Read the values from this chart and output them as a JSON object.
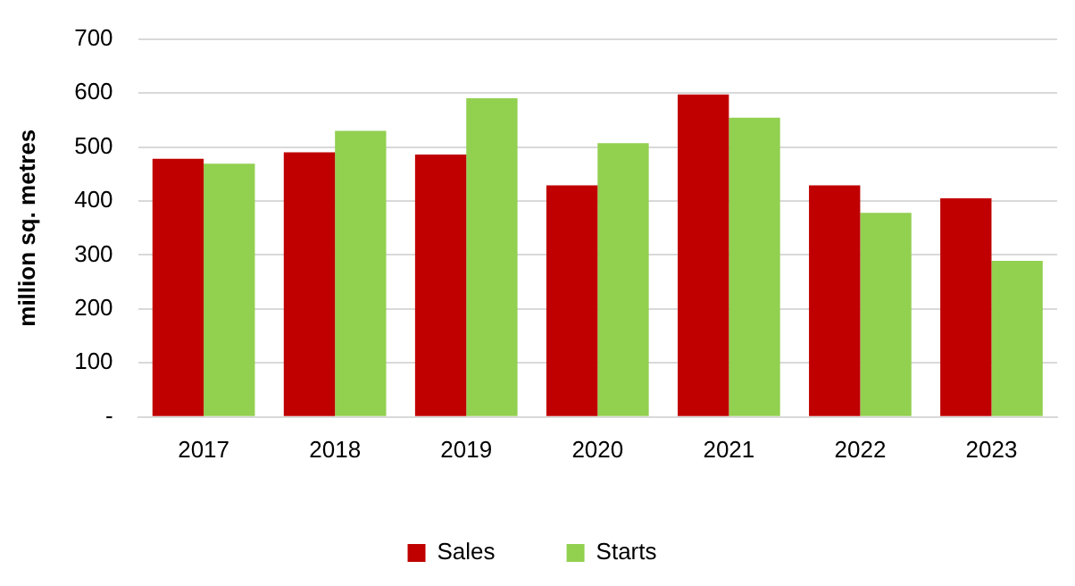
{
  "chart_data": {
    "type": "bar",
    "ylabel": "million sq. metres",
    "categories": [
      "2017",
      "2018",
      "2019",
      "2020",
      "2021",
      "2022",
      "2023"
    ],
    "series": [
      {
        "name": "Sales",
        "color": "#c00000",
        "values": [
          478,
          490,
          486,
          429,
          597,
          429,
          405
        ]
      },
      {
        "name": "Starts",
        "color": "#92d050",
        "values": [
          469,
          530,
          590,
          507,
          554,
          378,
          289
        ]
      }
    ],
    "ylim": [
      0,
      700
    ],
    "yticks": [
      {
        "value": 0,
        "label": "-"
      },
      100,
      200,
      300,
      400,
      500,
      600,
      700
    ],
    "grid": "y",
    "legend": "bottom"
  }
}
